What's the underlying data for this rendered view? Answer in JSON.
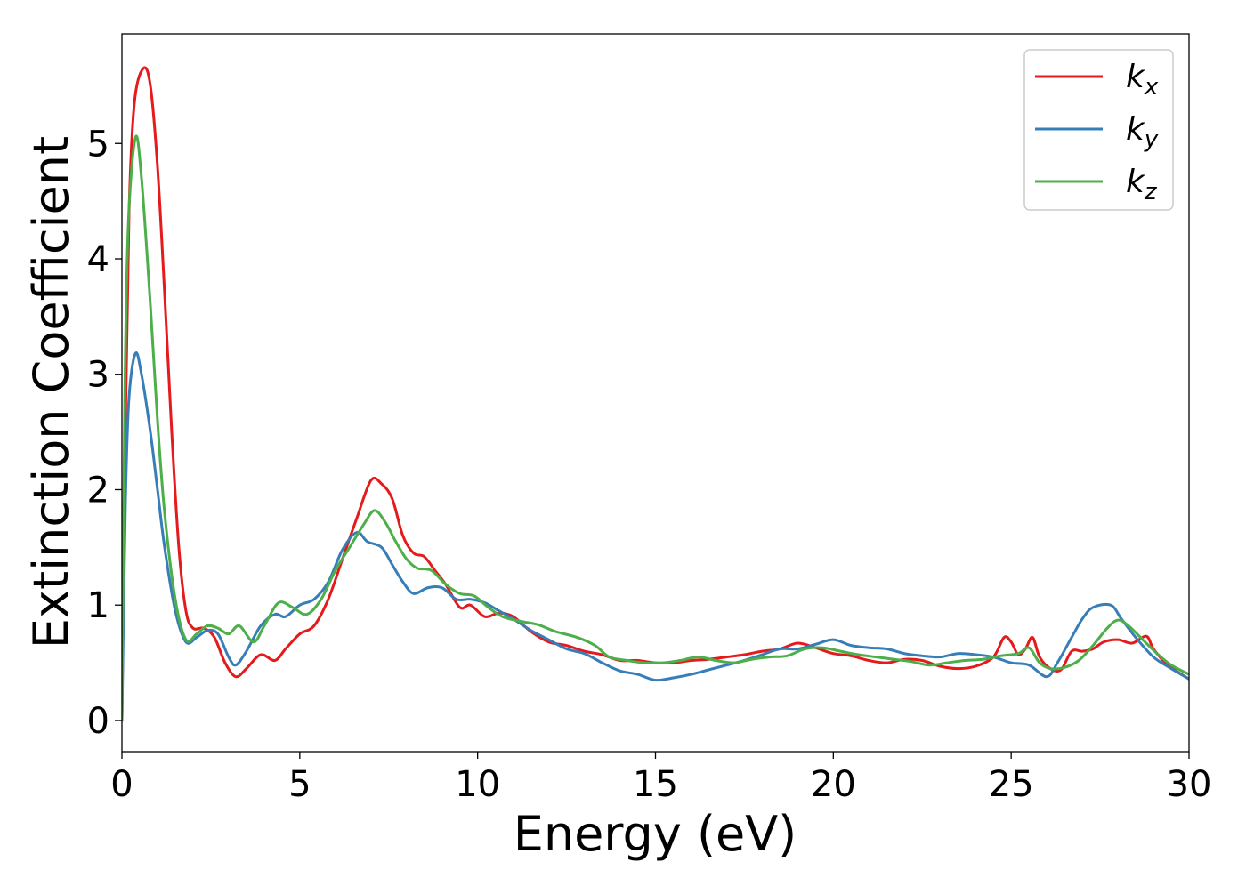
{
  "chart_data": {
    "type": "line",
    "title": "",
    "xlabel": "Energy (eV)",
    "ylabel": "Extinction Coefficient",
    "xlim": [
      0,
      30
    ],
    "ylim": [
      -0.27,
      5.95
    ],
    "xticks": [
      0,
      5,
      10,
      15,
      20,
      25,
      30
    ],
    "yticks": [
      0,
      1,
      2,
      3,
      4,
      5
    ],
    "grid": false,
    "legend_position": "top-right",
    "series": [
      {
        "name": "k_x",
        "legend_base": "k",
        "legend_sub": "x",
        "color": "#e41a1c",
        "points": [
          [
            0,
            0
          ],
          [
            0.1,
            2.6
          ],
          [
            0.2,
            4.4
          ],
          [
            0.35,
            5.35
          ],
          [
            0.6,
            5.65
          ],
          [
            0.8,
            5.5
          ],
          [
            1.0,
            4.8
          ],
          [
            1.2,
            3.7
          ],
          [
            1.4,
            2.5
          ],
          [
            1.6,
            1.5
          ],
          [
            1.8,
            0.95
          ],
          [
            2.0,
            0.8
          ],
          [
            2.3,
            0.8
          ],
          [
            2.6,
            0.72
          ],
          [
            2.9,
            0.5
          ],
          [
            3.2,
            0.38
          ],
          [
            3.5,
            0.45
          ],
          [
            3.9,
            0.57
          ],
          [
            4.3,
            0.52
          ],
          [
            4.6,
            0.62
          ],
          [
            5.0,
            0.75
          ],
          [
            5.4,
            0.82
          ],
          [
            5.8,
            1.05
          ],
          [
            6.2,
            1.4
          ],
          [
            6.6,
            1.75
          ],
          [
            7.0,
            2.08
          ],
          [
            7.3,
            2.05
          ],
          [
            7.6,
            1.92
          ],
          [
            7.9,
            1.6
          ],
          [
            8.2,
            1.45
          ],
          [
            8.5,
            1.42
          ],
          [
            8.8,
            1.3
          ],
          [
            9.1,
            1.18
          ],
          [
            9.5,
            0.98
          ],
          [
            9.8,
            1.0
          ],
          [
            10.2,
            0.9
          ],
          [
            10.6,
            0.93
          ],
          [
            11.0,
            0.9
          ],
          [
            11.5,
            0.77
          ],
          [
            12.0,
            0.68
          ],
          [
            12.5,
            0.65
          ],
          [
            13.0,
            0.6
          ],
          [
            13.5,
            0.57
          ],
          [
            14.0,
            0.52
          ],
          [
            14.5,
            0.52
          ],
          [
            15.0,
            0.5
          ],
          [
            15.5,
            0.5
          ],
          [
            16.0,
            0.52
          ],
          [
            16.5,
            0.53
          ],
          [
            17.0,
            0.55
          ],
          [
            17.5,
            0.57
          ],
          [
            18.0,
            0.6
          ],
          [
            18.5,
            0.62
          ],
          [
            19.0,
            0.67
          ],
          [
            19.5,
            0.63
          ],
          [
            20.0,
            0.58
          ],
          [
            20.5,
            0.56
          ],
          [
            21.0,
            0.52
          ],
          [
            21.5,
            0.5
          ],
          [
            22.0,
            0.53
          ],
          [
            22.5,
            0.52
          ],
          [
            23.0,
            0.47
          ],
          [
            23.5,
            0.45
          ],
          [
            24.0,
            0.47
          ],
          [
            24.5,
            0.55
          ],
          [
            24.8,
            0.72
          ],
          [
            25.0,
            0.68
          ],
          [
            25.2,
            0.57
          ],
          [
            25.4,
            0.62
          ],
          [
            25.6,
            0.72
          ],
          [
            25.8,
            0.55
          ],
          [
            26.1,
            0.45
          ],
          [
            26.4,
            0.44
          ],
          [
            26.7,
            0.6
          ],
          [
            27.0,
            0.6
          ],
          [
            27.3,
            0.62
          ],
          [
            27.6,
            0.68
          ],
          [
            28.0,
            0.7
          ],
          [
            28.4,
            0.67
          ],
          [
            28.8,
            0.73
          ],
          [
            29.0,
            0.62
          ],
          [
            29.4,
            0.48
          ],
          [
            30.0,
            0.36
          ]
        ]
      },
      {
        "name": "k_y",
        "legend_base": "k",
        "legend_sub": "y",
        "color": "#377eb8",
        "points": [
          [
            0,
            0
          ],
          [
            0.1,
            1.9
          ],
          [
            0.2,
            2.8
          ],
          [
            0.38,
            3.18
          ],
          [
            0.55,
            3.0
          ],
          [
            0.8,
            2.5
          ],
          [
            1.0,
            2.0
          ],
          [
            1.2,
            1.5
          ],
          [
            1.5,
            0.95
          ],
          [
            1.8,
            0.68
          ],
          [
            2.1,
            0.72
          ],
          [
            2.4,
            0.78
          ],
          [
            2.7,
            0.75
          ],
          [
            3.0,
            0.55
          ],
          [
            3.2,
            0.48
          ],
          [
            3.5,
            0.6
          ],
          [
            3.9,
            0.82
          ],
          [
            4.3,
            0.92
          ],
          [
            4.6,
            0.9
          ],
          [
            5.0,
            1.0
          ],
          [
            5.4,
            1.05
          ],
          [
            5.8,
            1.2
          ],
          [
            6.2,
            1.48
          ],
          [
            6.6,
            1.63
          ],
          [
            6.9,
            1.55
          ],
          [
            7.3,
            1.5
          ],
          [
            7.6,
            1.35
          ],
          [
            7.9,
            1.2
          ],
          [
            8.2,
            1.1
          ],
          [
            8.6,
            1.15
          ],
          [
            9.0,
            1.15
          ],
          [
            9.4,
            1.05
          ],
          [
            9.8,
            1.05
          ],
          [
            10.2,
            1.02
          ],
          [
            10.6,
            0.95
          ],
          [
            11.0,
            0.88
          ],
          [
            11.5,
            0.78
          ],
          [
            12.0,
            0.7
          ],
          [
            12.5,
            0.62
          ],
          [
            13.0,
            0.58
          ],
          [
            13.5,
            0.5
          ],
          [
            14.0,
            0.43
          ],
          [
            14.5,
            0.4
          ],
          [
            15.0,
            0.35
          ],
          [
            15.5,
            0.37
          ],
          [
            16.0,
            0.4
          ],
          [
            16.5,
            0.44
          ],
          [
            17.0,
            0.48
          ],
          [
            17.5,
            0.52
          ],
          [
            18.0,
            0.57
          ],
          [
            18.5,
            0.62
          ],
          [
            19.0,
            0.62
          ],
          [
            19.5,
            0.66
          ],
          [
            20.0,
            0.7
          ],
          [
            20.5,
            0.65
          ],
          [
            21.0,
            0.63
          ],
          [
            21.5,
            0.62
          ],
          [
            22.0,
            0.58
          ],
          [
            22.5,
            0.56
          ],
          [
            23.0,
            0.55
          ],
          [
            23.5,
            0.58
          ],
          [
            24.0,
            0.57
          ],
          [
            24.5,
            0.55
          ],
          [
            25.0,
            0.5
          ],
          [
            25.5,
            0.48
          ],
          [
            26.0,
            0.38
          ],
          [
            26.3,
            0.5
          ],
          [
            26.7,
            0.72
          ],
          [
            27.0,
            0.88
          ],
          [
            27.3,
            0.98
          ],
          [
            27.8,
            1.0
          ],
          [
            28.1,
            0.88
          ],
          [
            28.5,
            0.72
          ],
          [
            29.0,
            0.55
          ],
          [
            29.5,
            0.45
          ],
          [
            30.0,
            0.36
          ]
        ]
      },
      {
        "name": "k_z",
        "legend_base": "k",
        "legend_sub": "z",
        "color": "#4daf4a",
        "points": [
          [
            0,
            0
          ],
          [
            0.08,
            2.8
          ],
          [
            0.18,
            4.3
          ],
          [
            0.38,
            5.05
          ],
          [
            0.55,
            4.7
          ],
          [
            0.8,
            3.6
          ],
          [
            1.0,
            2.6
          ],
          [
            1.2,
            1.8
          ],
          [
            1.5,
            1.05
          ],
          [
            1.8,
            0.7
          ],
          [
            2.1,
            0.75
          ],
          [
            2.4,
            0.82
          ],
          [
            2.7,
            0.8
          ],
          [
            3.0,
            0.75
          ],
          [
            3.3,
            0.82
          ],
          [
            3.7,
            0.68
          ],
          [
            4.0,
            0.82
          ],
          [
            4.4,
            1.02
          ],
          [
            4.8,
            0.98
          ],
          [
            5.2,
            0.92
          ],
          [
            5.6,
            1.05
          ],
          [
            6.0,
            1.3
          ],
          [
            6.4,
            1.5
          ],
          [
            6.8,
            1.7
          ],
          [
            7.1,
            1.82
          ],
          [
            7.4,
            1.72
          ],
          [
            7.7,
            1.55
          ],
          [
            8.0,
            1.4
          ],
          [
            8.3,
            1.32
          ],
          [
            8.7,
            1.3
          ],
          [
            9.1,
            1.18
          ],
          [
            9.5,
            1.1
          ],
          [
            9.9,
            1.08
          ],
          [
            10.3,
            0.98
          ],
          [
            10.7,
            0.9
          ],
          [
            11.2,
            0.86
          ],
          [
            11.7,
            0.83
          ],
          [
            12.2,
            0.77
          ],
          [
            12.8,
            0.72
          ],
          [
            13.3,
            0.65
          ],
          [
            13.7,
            0.55
          ],
          [
            14.2,
            0.52
          ],
          [
            14.7,
            0.5
          ],
          [
            15.2,
            0.5
          ],
          [
            15.7,
            0.52
          ],
          [
            16.2,
            0.55
          ],
          [
            16.7,
            0.52
          ],
          [
            17.2,
            0.5
          ],
          [
            17.7,
            0.53
          ],
          [
            18.2,
            0.55
          ],
          [
            18.7,
            0.56
          ],
          [
            19.2,
            0.62
          ],
          [
            19.7,
            0.63
          ],
          [
            20.2,
            0.6
          ],
          [
            20.7,
            0.57
          ],
          [
            21.2,
            0.55
          ],
          [
            21.7,
            0.53
          ],
          [
            22.2,
            0.51
          ],
          [
            22.7,
            0.48
          ],
          [
            23.2,
            0.5
          ],
          [
            23.7,
            0.52
          ],
          [
            24.2,
            0.53
          ],
          [
            24.7,
            0.56
          ],
          [
            25.2,
            0.58
          ],
          [
            25.5,
            0.63
          ],
          [
            25.8,
            0.5
          ],
          [
            26.1,
            0.45
          ],
          [
            26.5,
            0.46
          ],
          [
            26.9,
            0.52
          ],
          [
            27.3,
            0.65
          ],
          [
            27.7,
            0.8
          ],
          [
            28.0,
            0.87
          ],
          [
            28.3,
            0.82
          ],
          [
            28.7,
            0.7
          ],
          [
            29.1,
            0.58
          ],
          [
            29.5,
            0.48
          ],
          [
            30.0,
            0.4
          ]
        ]
      }
    ]
  }
}
